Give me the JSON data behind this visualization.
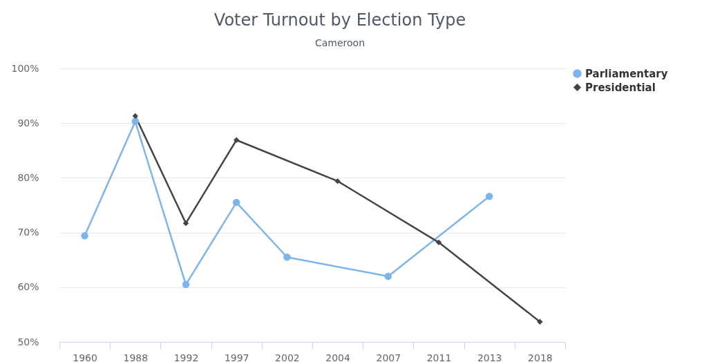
{
  "chart_data": {
    "type": "line",
    "title": "Voter Turnout by Election Type",
    "subtitle": "Cameroon",
    "categories": [
      "1960",
      "1988",
      "1992",
      "1997",
      "2002",
      "2004",
      "2007",
      "2011",
      "2013",
      "2018"
    ],
    "series": [
      {
        "name": "Parliamentary",
        "color": "#7cb5ec",
        "marker": "circle",
        "values": [
          69.4,
          90.3,
          60.5,
          75.5,
          65.5,
          null,
          62.0,
          null,
          76.6,
          null
        ]
      },
      {
        "name": "Presidential",
        "color": "#434348",
        "marker": "diamond",
        "values": [
          null,
          91.3,
          71.7,
          86.9,
          null,
          79.4,
          null,
          68.2,
          null,
          53.7
        ]
      }
    ],
    "ylim": [
      50,
      100
    ],
    "yticks": [
      {
        "value": 50,
        "label": "50%"
      },
      {
        "value": 60,
        "label": "60%"
      },
      {
        "value": 70,
        "label": "70%"
      },
      {
        "value": 80,
        "label": "80%"
      },
      {
        "value": 90,
        "label": "90%"
      },
      {
        "value": 100,
        "label": "100%"
      }
    ],
    "grid": "y",
    "legend": "right"
  }
}
